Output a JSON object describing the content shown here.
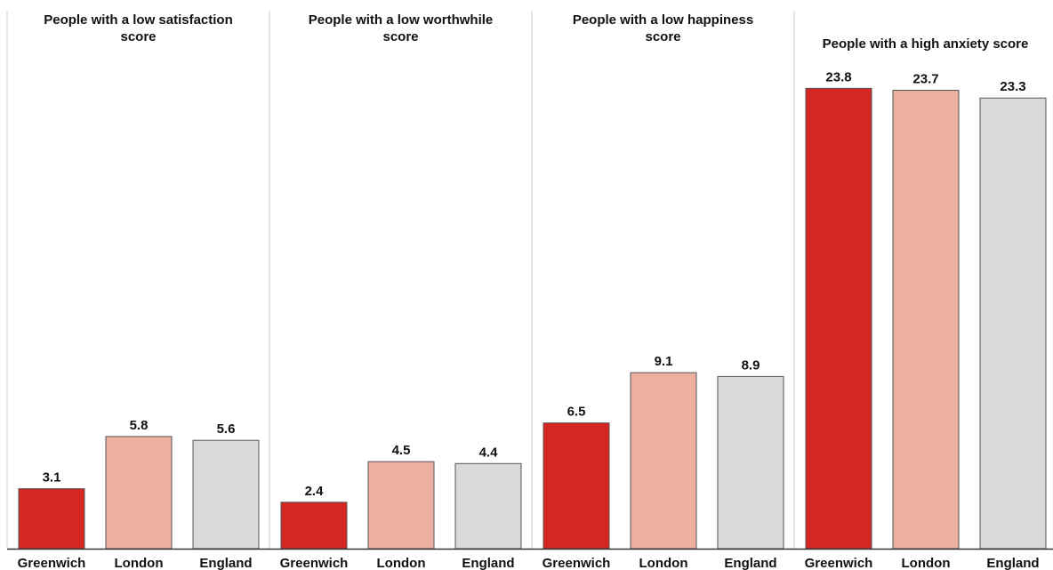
{
  "chart_data": {
    "type": "bar",
    "ylim": [
      0,
      25
    ],
    "grid": false,
    "legend": "none",
    "categories": [
      "Greenwich",
      "London",
      "England"
    ],
    "colors": {
      "Greenwich": "#d42623",
      "London": "#ebb09f",
      "England": "#d9d9d9",
      "bar_border": "#555555",
      "panel_divider": "#cccccc",
      "axis": "#333333"
    },
    "panels": [
      {
        "title_lines": [
          "People with a low satisfaction",
          "score"
        ],
        "values": [
          3.1,
          5.8,
          5.6
        ]
      },
      {
        "title_lines": [
          "People with a low worthwhile",
          "score"
        ],
        "values": [
          2.4,
          4.5,
          4.4
        ]
      },
      {
        "title_lines": [
          "People with a low happiness",
          "score"
        ],
        "values": [
          6.5,
          9.1,
          8.9
        ]
      },
      {
        "title_lines": [
          "People with a high anxiety score"
        ],
        "values": [
          23.8,
          23.7,
          23.3
        ]
      }
    ]
  }
}
